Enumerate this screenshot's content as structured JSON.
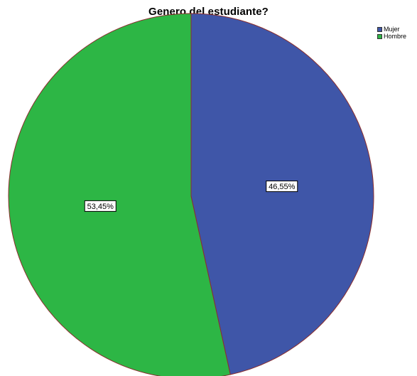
{
  "chart_data": {
    "type": "pie",
    "title": "Genero del estudiante?",
    "slices": [
      {
        "label": "Mujer",
        "value": 46.55,
        "display": "46,55%",
        "color": "#3F56A8"
      },
      {
        "label": "Hombre",
        "value": 53.45,
        "display": "53,45%",
        "color": "#2DB645"
      }
    ],
    "start_angle": "12 o'clock",
    "direction": "clockwise",
    "legend_position": "top-right",
    "edge_color": "#8B2E2E"
  }
}
